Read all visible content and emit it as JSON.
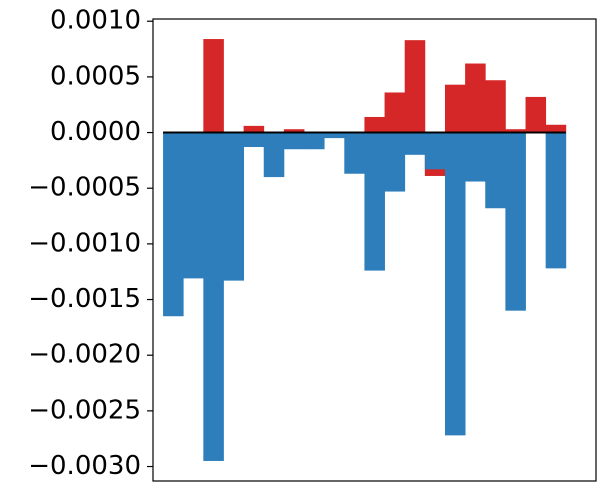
{
  "chart_data": {
    "type": "bar",
    "title": "",
    "xlabel": "",
    "ylabel": "",
    "ylim": [
      -0.00313,
      0.00102
    ],
    "xlim": [
      -1,
      21
    ],
    "grid": false,
    "legend": "none",
    "y_ticks": [
      {
        "value": 0.001,
        "label": "0.0010"
      },
      {
        "value": 0.0005,
        "label": "0.0005"
      },
      {
        "value": 0.0,
        "label": "0.0000"
      },
      {
        "value": -0.0005,
        "label": "−0.0005"
      },
      {
        "value": -0.001,
        "label": "−0.0010"
      },
      {
        "value": -0.0015,
        "label": "−0.0015"
      },
      {
        "value": -0.002,
        "label": "−0.0020"
      },
      {
        "value": -0.0025,
        "label": "−0.0025"
      },
      {
        "value": -0.003,
        "label": "−0.0030"
      }
    ],
    "baseline": 0,
    "series": [
      {
        "color": "#d62728",
        "values": [
          0,
          0,
          0.00084,
          0,
          6e-05,
          0,
          3e-05,
          0,
          0,
          0,
          0.00014,
          0.00036,
          0.00083,
          -0.00039,
          0.00043,
          0.00062,
          0.00047,
          3e-05,
          0.00032,
          7e-05
        ]
      },
      {
        "color": "#2e7ebc",
        "values": [
          -0.00165,
          -0.00131,
          -0.00295,
          -0.00133,
          -0.00013,
          -0.0004,
          -0.00015,
          -0.00015,
          -5e-05,
          -0.00037,
          -0.00124,
          -0.00053,
          -0.0002,
          -0.00033,
          -0.00272,
          -0.00044,
          -0.00068,
          -0.0016,
          0,
          -0.00122
        ]
      }
    ]
  }
}
